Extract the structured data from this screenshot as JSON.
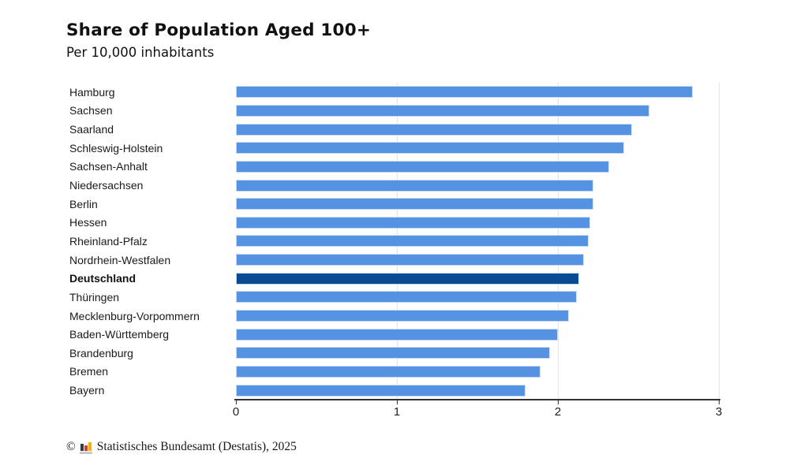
{
  "header": {
    "title": "Share of Population Aged 100+",
    "subtitle": "Per 10,000 inhabitants"
  },
  "chart_data": {
    "type": "bar",
    "orientation": "horizontal",
    "title": "Share of Population Aged 100+",
    "subtitle": "Per 10,000 inhabitants",
    "xlabel": "",
    "ylabel": "",
    "xlim": [
      0,
      3
    ],
    "x_ticks": [
      "0",
      "1",
      "2",
      "3"
    ],
    "grid": "vertical light gridlines at 1, 2, 3",
    "legend": "none",
    "sort": "descending",
    "categories": [
      "Hamburg",
      "Sachsen",
      "Saarland",
      "Schleswig-Holstein",
      "Sachsen-Anhalt",
      "Niedersachsen",
      "Berlin",
      "Hessen",
      "Rheinland-Pfalz",
      "Nordrhein-Westfalen",
      "Deutschland",
      "Thüringen",
      "Mecklenburg-Vorpommern",
      "Baden-Württemberg",
      "Brandenburg",
      "Bremen",
      "Bayern"
    ],
    "values": [
      2.84,
      2.57,
      2.46,
      2.41,
      2.32,
      2.22,
      2.22,
      2.2,
      2.19,
      2.16,
      2.13,
      2.12,
      2.07,
      2.0,
      1.95,
      1.89,
      1.8
    ],
    "highlight_index": 10,
    "highlight_label": "Deutschland",
    "colors": {
      "bar": "#5593e2",
      "bar_highlight": "#084b92",
      "bar_edge": "#c5d9f6",
      "gridline": "#e3e3e3",
      "axis": "#333333"
    }
  },
  "footer": {
    "copyright_symbol": "©",
    "source": "Statistisches Bundesamt (Destatis), 2025",
    "logo_icon": "destatis-bar-chart-logo",
    "logo_colors": {
      "dark": "#3a3a39",
      "red": "#dd3c2c",
      "gold": "#f0b400",
      "base": "#c9c9c9"
    }
  }
}
